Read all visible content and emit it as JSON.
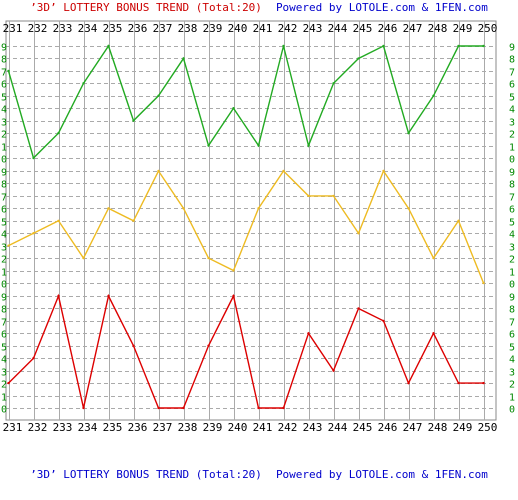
{
  "chart_data": {
    "type": "line",
    "title_top": {
      "part1": "’3D’ LOTTERY BONUS TREND (Total:20)",
      "part2": "Powered by LOTOLE.com & 1FEN.com"
    },
    "title_bottom": {
      "part1": "’3D’ LOTTERY BONUS TREND (Total:20)",
      "part2": "Powered by LOTOLE.com & 1FEN.com"
    },
    "x": [
      "231",
      "232",
      "233",
      "234",
      "235",
      "236",
      "237",
      "238",
      "239",
      "240",
      "241",
      "242",
      "243",
      "244",
      "245",
      "246",
      "247",
      "248",
      "249",
      "250"
    ],
    "y_tick_labels": [
      "0",
      "1",
      "2",
      "3",
      "4",
      "5",
      "6",
      "7",
      "8",
      "9"
    ],
    "ylim": [
      0,
      9
    ],
    "grid": true,
    "series": [
      {
        "values": [
          7,
          0,
          2,
          6,
          9,
          3,
          5,
          8,
          1,
          4,
          1,
          9,
          1,
          6,
          8,
          9,
          2,
          5,
          9,
          9
        ],
        "color": "#22aa22"
      },
      {
        "values": [
          3,
          4,
          5,
          2,
          6,
          5,
          9,
          6,
          2,
          1,
          6,
          9,
          7,
          7,
          4,
          9,
          6,
          2,
          5,
          0
        ],
        "color": "#eebb22"
      },
      {
        "values": [
          2,
          4,
          9,
          0,
          9,
          5,
          0,
          0,
          5,
          9,
          0,
          0,
          6,
          3,
          8,
          7,
          2,
          6,
          2,
          2
        ],
        "color": "#dd0000"
      }
    ],
    "colors": {
      "title_red": "#cc0000",
      "title_blue": "#0000cc",
      "axis_label": "#000000",
      "axis_digits": "#008800",
      "grid_line": "#aaaaaa",
      "frame": "#888888"
    }
  }
}
